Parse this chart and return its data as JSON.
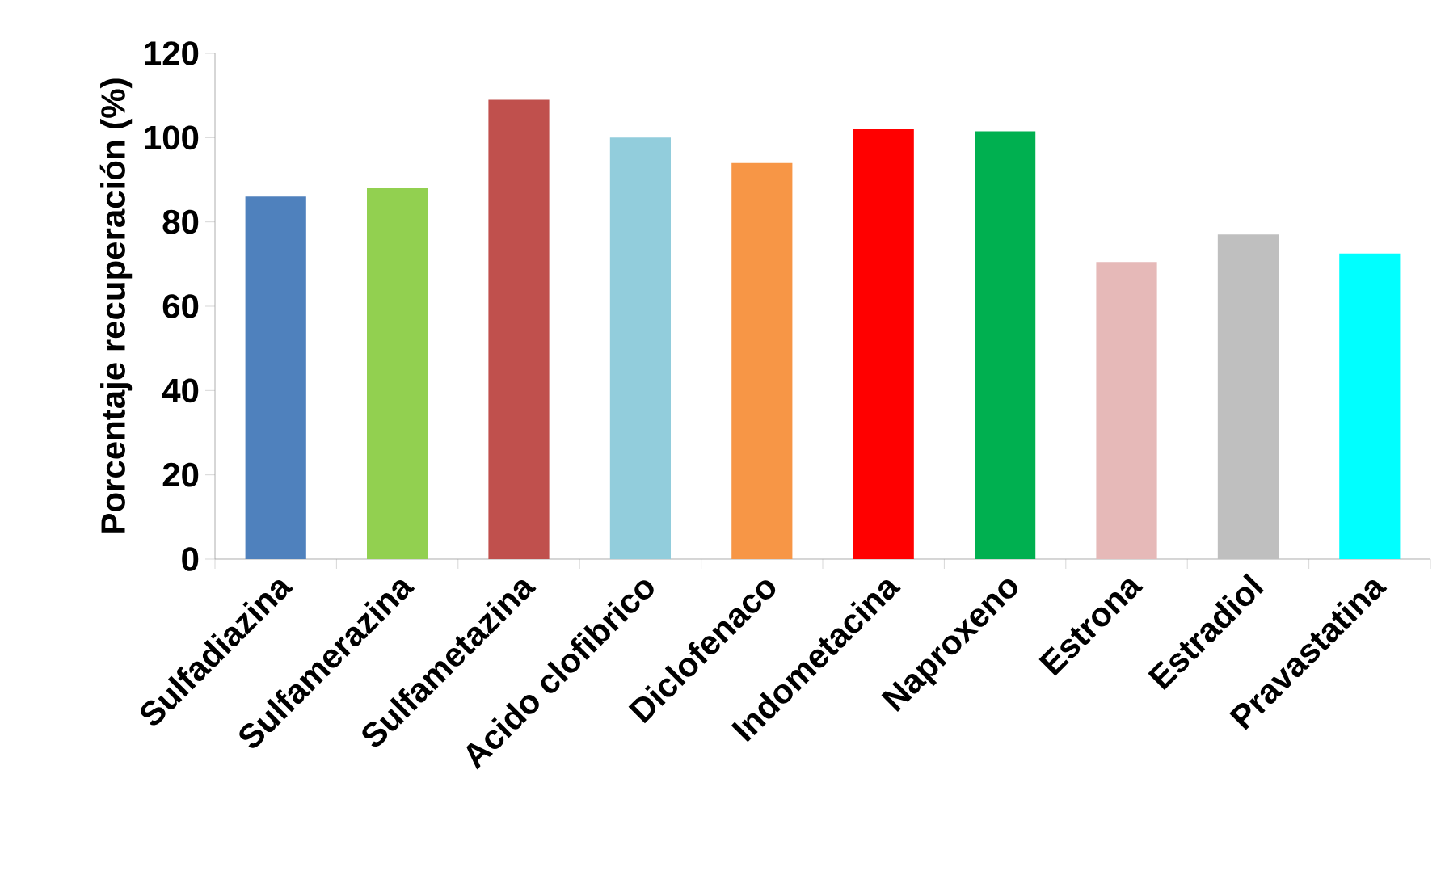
{
  "chart_data": {
    "type": "bar",
    "ylabel": "Porcentaje recuperación (%)",
    "categories": [
      "Sulfadiazina",
      "Sulfamerazina",
      "Sulfametazina",
      "Acido clofibrico",
      "Diclofenaco",
      "Indometacina",
      "Naproxeno",
      "Estrona",
      "Estradiol",
      "Pravastatina"
    ],
    "values": [
      86,
      88,
      109,
      100,
      94,
      102,
      101.5,
      70.5,
      77,
      72.5
    ],
    "colors": [
      "#4f81bd",
      "#92d050",
      "#c0504d",
      "#92cddc",
      "#f79646",
      "#ff0000",
      "#00b050",
      "#e6b9b8",
      "#bfbfbf",
      "#00ffff"
    ],
    "ylim": [
      0,
      120
    ],
    "yticks": [
      0,
      20,
      40,
      60,
      80,
      100,
      120
    ],
    "grid": false
  }
}
